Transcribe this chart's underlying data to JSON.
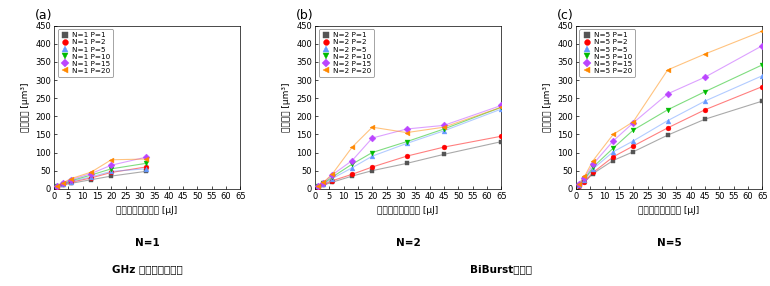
{
  "panels": [
    {
      "label": "(a)",
      "subtitle1": "N=1",
      "subtitle2": "GHz バーストモード",
      "series": [
        {
          "legend": "N=1 P=1",
          "color": "#555555",
          "marker": "s",
          "x": [
            1,
            3,
            6,
            13,
            20,
            32
          ],
          "y": [
            5,
            10,
            15,
            25,
            35,
            48
          ]
        },
        {
          "legend": "N=1 P=2",
          "color": "#ff0000",
          "marker": "o",
          "x": [
            1,
            3,
            6,
            13,
            20,
            32
          ],
          "y": [
            6,
            12,
            18,
            30,
            45,
            60
          ]
        },
        {
          "legend": "N=1 P=5",
          "color": "#6699ff",
          "marker": "^",
          "x": [
            1,
            3,
            6,
            13,
            20,
            32
          ],
          "y": [
            7,
            13,
            20,
            33,
            48,
            55
          ]
        },
        {
          "legend": "N=1 P=10",
          "color": "#00bb00",
          "marker": "v",
          "x": [
            1,
            3,
            6,
            13,
            20,
            32
          ],
          "y": [
            7,
            14,
            22,
            38,
            55,
            70
          ]
        },
        {
          "legend": "N=1 P=15",
          "color": "#bb44ff",
          "marker": "D",
          "x": [
            1,
            3,
            6,
            13,
            20,
            32
          ],
          "y": [
            8,
            15,
            25,
            42,
            65,
            87
          ]
        },
        {
          "legend": "N=1 P=20",
          "color": "#ff8800",
          "marker": "<",
          "x": [
            1,
            3,
            6,
            13,
            20,
            32
          ],
          "y": [
            8,
            16,
            28,
            46,
            80,
            82
          ]
        }
      ]
    },
    {
      "label": "(b)",
      "subtitle1": "N=2",
      "subtitle2": "",
      "series": [
        {
          "legend": "N=2 P=1",
          "color": "#555555",
          "marker": "s",
          "x": [
            1,
            3,
            6,
            13,
            20,
            32,
            45,
            65
          ],
          "y": [
            5,
            10,
            18,
            35,
            50,
            70,
            95,
            130
          ]
        },
        {
          "legend": "N=2 P=2",
          "color": "#ff0000",
          "marker": "o",
          "x": [
            1,
            3,
            6,
            13,
            20,
            32,
            45,
            65
          ],
          "y": [
            6,
            12,
            22,
            40,
            60,
            90,
            115,
            145
          ]
        },
        {
          "legend": "N=2 P=5",
          "color": "#6699ff",
          "marker": "^",
          "x": [
            1,
            3,
            6,
            13,
            20,
            32,
            45,
            65
          ],
          "y": [
            7,
            13,
            28,
            58,
            90,
            125,
            160,
            220
          ]
        },
        {
          "legend": "N=2 P=10",
          "color": "#00bb00",
          "marker": "v",
          "x": [
            1,
            3,
            6,
            13,
            20,
            32,
            45,
            65
          ],
          "y": [
            7,
            15,
            32,
            68,
            100,
            130,
            165,
            225
          ]
        },
        {
          "legend": "N=2 P=15",
          "color": "#bb44ff",
          "marker": "D",
          "x": [
            1,
            3,
            6,
            13,
            20,
            32,
            45,
            65
          ],
          "y": [
            8,
            16,
            38,
            78,
            140,
            165,
            175,
            230
          ]
        },
        {
          "legend": "N=2 P=20",
          "color": "#ff8800",
          "marker": "<",
          "x": [
            1,
            3,
            6,
            13,
            20,
            32,
            45,
            65
          ],
          "y": [
            8,
            18,
            40,
            115,
            170,
            155,
            170,
            225
          ]
        }
      ]
    },
    {
      "label": "(c)",
      "subtitle1": "N=5",
      "subtitle2": "BiBurstモード",
      "series": [
        {
          "legend": "N=5 P=1",
          "color": "#555555",
          "marker": "s",
          "x": [
            1,
            3,
            6,
            13,
            20,
            32,
            45,
            65
          ],
          "y": [
            8,
            18,
            42,
            78,
            102,
            148,
            192,
            242
          ]
        },
        {
          "legend": "N=5 P=2",
          "color": "#ff0000",
          "marker": "o",
          "x": [
            1,
            3,
            6,
            13,
            20,
            32,
            45,
            65
          ],
          "y": [
            8,
            20,
            45,
            88,
            118,
            168,
            218,
            282
          ]
        },
        {
          "legend": "N=5 P=5",
          "color": "#6699ff",
          "marker": "^",
          "x": [
            1,
            3,
            6,
            13,
            20,
            32,
            45,
            65
          ],
          "y": [
            10,
            24,
            55,
            102,
            132,
            188,
            242,
            312
          ]
        },
        {
          "legend": "N=5 P=10",
          "color": "#00bb00",
          "marker": "v",
          "x": [
            1,
            3,
            6,
            13,
            20,
            32,
            45,
            65
          ],
          "y": [
            10,
            26,
            60,
            112,
            162,
            218,
            268,
            342
          ]
        },
        {
          "legend": "N=5 P=15",
          "color": "#bb44ff",
          "marker": "D",
          "x": [
            1,
            3,
            6,
            13,
            20,
            32,
            45,
            65
          ],
          "y": [
            12,
            30,
            68,
            132,
            182,
            262,
            308,
            395
          ]
        },
        {
          "legend": "N=5 P=20",
          "color": "#ff8800",
          "marker": "<",
          "x": [
            1,
            3,
            6,
            13,
            20,
            32,
            45,
            65
          ],
          "y": [
            14,
            34,
            78,
            150,
            185,
            328,
            372,
            435
          ]
        }
      ]
    }
  ],
  "xlabel": "全投入エネルギー [μJ]",
  "ylabel": "除去体積 [μm³]",
  "xlim": [
    0,
    65
  ],
  "ylim": [
    0,
    450
  ],
  "yticks": [
    0,
    50,
    100,
    150,
    200,
    250,
    300,
    350,
    400,
    450
  ],
  "xticks": [
    0,
    5,
    10,
    15,
    20,
    25,
    30,
    35,
    40,
    45,
    50,
    55,
    60,
    65
  ],
  "marker_size": 3.5,
  "line_width": 0.8,
  "line_alpha": 0.5,
  "font_size_label": 6.5,
  "font_size_tick": 6,
  "font_size_legend": 5.2,
  "font_size_subtitle": 7.5,
  "font_size_panel_label": 9
}
